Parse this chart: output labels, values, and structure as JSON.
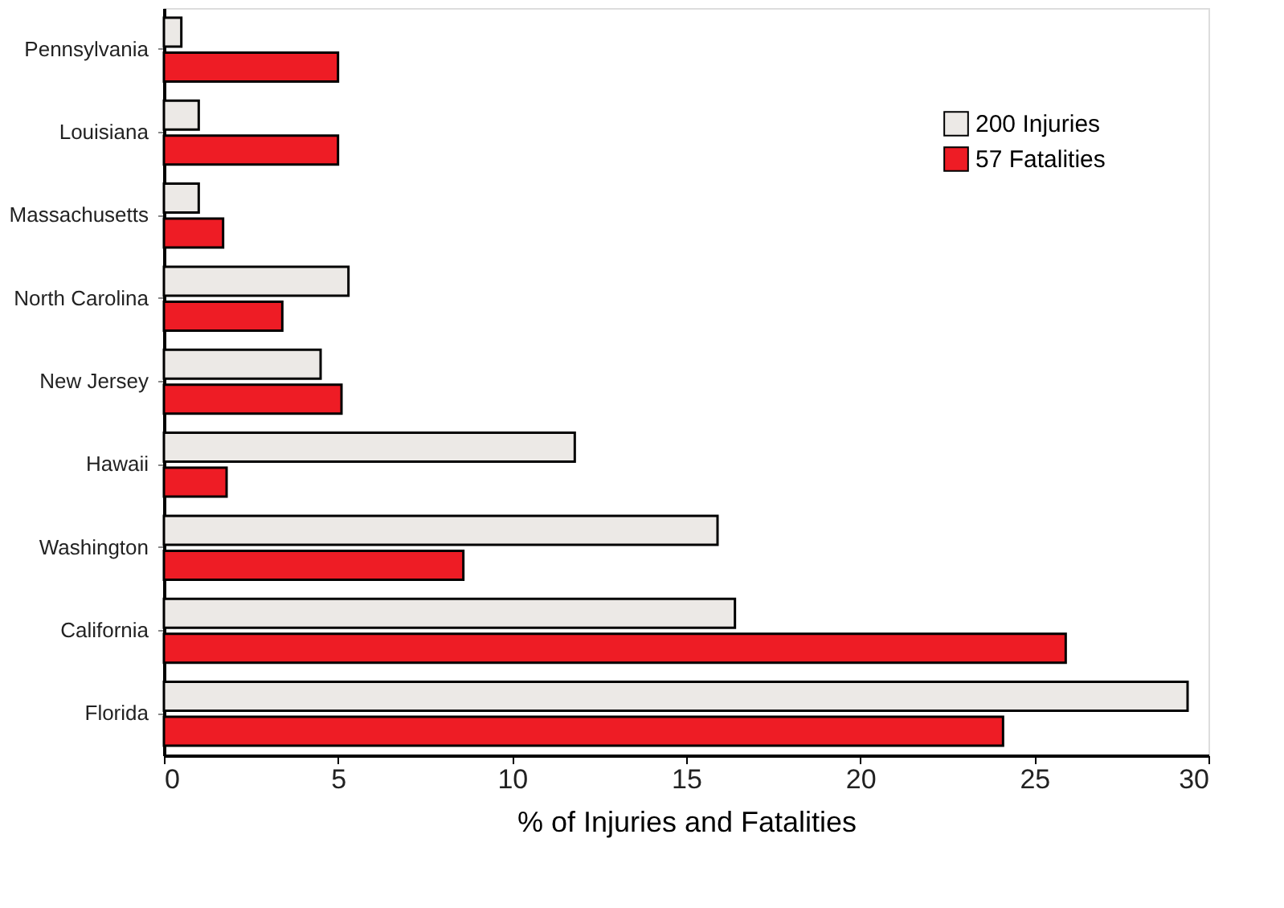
{
  "chart_data": {
    "type": "bar",
    "orientation": "horizontal",
    "xlabel": "% of Injuries and Fatalities",
    "categories": [
      "Pennsylvania",
      "Louisiana",
      "Massachusetts",
      "North Carolina",
      "New Jersey",
      "Hawaii",
      "Washington",
      "California",
      "Florida"
    ],
    "series": [
      {
        "name": "200 Injuries",
        "color": "#ece9e6",
        "values": [
          0.5,
          1.0,
          1.0,
          5.3,
          4.5,
          11.8,
          15.9,
          16.4,
          29.4
        ]
      },
      {
        "name": "57 Fatalities",
        "color": "#ee1c25",
        "values": [
          5.0,
          5.0,
          1.7,
          3.4,
          5.1,
          1.8,
          8.6,
          25.9,
          24.1
        ]
      }
    ],
    "xlim": [
      0,
      30
    ],
    "xticks": [
      0,
      5,
      10,
      15,
      20,
      25,
      30
    ],
    "grid": false,
    "legend": "top right"
  }
}
